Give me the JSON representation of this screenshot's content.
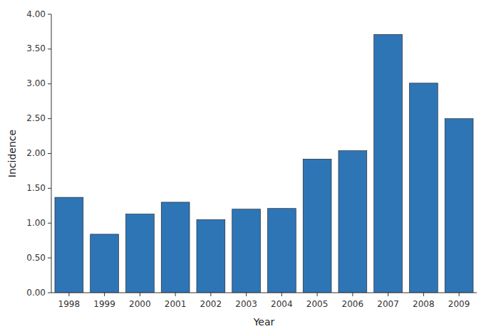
{
  "chart_data": {
    "type": "bar",
    "categories": [
      "1998",
      "1999",
      "2000",
      "2001",
      "2002",
      "2003",
      "2004",
      "2005",
      "2006",
      "2007",
      "2008",
      "2009"
    ],
    "values": [
      1.37,
      0.84,
      1.13,
      1.3,
      1.05,
      1.2,
      1.21,
      1.92,
      2.04,
      3.71,
      3.01,
      2.5
    ],
    "color": "#2e75b6",
    "xlabel": "Year",
    "ylabel": "Incidence",
    "ylim": [
      0.0,
      4.0
    ],
    "yticks": [
      {
        "value": 0.0,
        "label": "0.00"
      },
      {
        "value": 0.5,
        "label": "0.50"
      },
      {
        "value": 1.0,
        "label": "1.00"
      },
      {
        "value": 1.5,
        "label": "1.50"
      },
      {
        "value": 2.0,
        "label": "2.00"
      },
      {
        "value": 2.5,
        "label": "2.50"
      },
      {
        "value": 3.0,
        "label": "3.00"
      },
      {
        "value": 3.5,
        "label": "3.50"
      },
      {
        "value": 4.0,
        "label": "4.00"
      }
    ],
    "grid": false
  }
}
